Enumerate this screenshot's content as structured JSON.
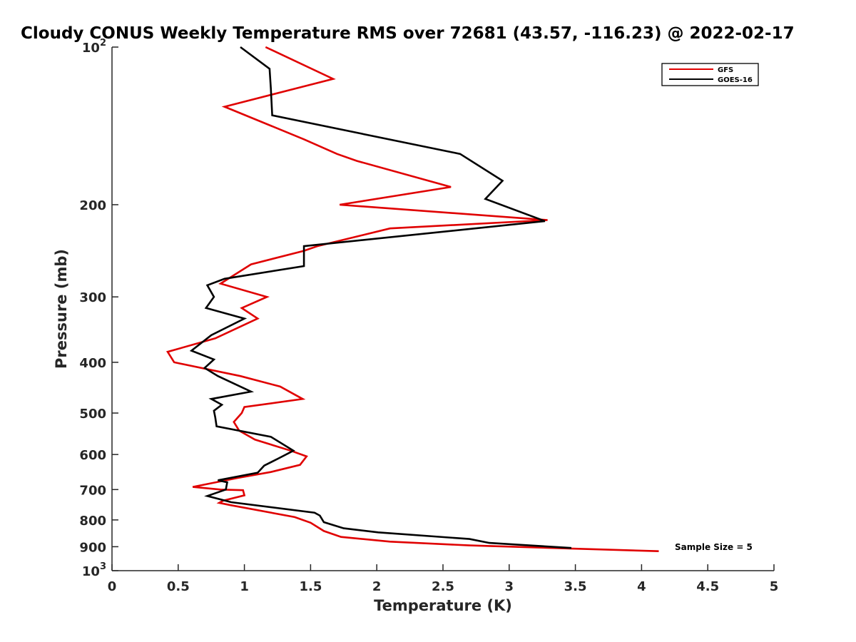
{
  "chart_data": {
    "type": "line",
    "title": "Cloudy CONUS Weekly Temperature RMS over 72681 (43.57, -116.23) @ 2022-02-17",
    "xlabel": "Temperature (K)",
    "ylabel": "Pressure (mb)",
    "xlim": [
      0,
      5
    ],
    "ylim": [
      100,
      1000
    ],
    "y_scale": "log",
    "y_reversed": true,
    "x_ticks": [
      0,
      0.5,
      1,
      1.5,
      2,
      2.5,
      3,
      3.5,
      4,
      4.5,
      5
    ],
    "x_tick_labels": [
      "0",
      "0.5",
      "1",
      "1.5",
      "2",
      "2.5",
      "3",
      "3.5",
      "4",
      "4.5",
      "5"
    ],
    "y_ticks": [
      100,
      200,
      300,
      400,
      500,
      600,
      700,
      800,
      900,
      1000
    ],
    "y_tick_labels": [
      {
        "base": "10",
        "exp": "2"
      },
      {
        "base": "200",
        "exp": ""
      },
      {
        "base": "300",
        "exp": ""
      },
      {
        "base": "400",
        "exp": ""
      },
      {
        "base": "500",
        "exp": ""
      },
      {
        "base": "600",
        "exp": ""
      },
      {
        "base": "700",
        "exp": ""
      },
      {
        "base": "800",
        "exp": ""
      },
      {
        "base": "900",
        "exp": ""
      },
      {
        "base": "10",
        "exp": "3"
      }
    ],
    "grid": false,
    "legend_position": "top-right",
    "series": [
      {
        "name": "GFS",
        "color": "#e00000",
        "points": [
          [
            1.16,
            100
          ],
          [
            1.67,
            115
          ],
          [
            0.85,
            130
          ],
          [
            1.45,
            150
          ],
          [
            1.7,
            160
          ],
          [
            1.85,
            165
          ],
          [
            2.56,
            185
          ],
          [
            1.72,
            200
          ],
          [
            3.29,
            214
          ],
          [
            2.1,
            222
          ],
          [
            1.55,
            240
          ],
          [
            1.45,
            245
          ],
          [
            1.05,
            260
          ],
          [
            0.82,
            283
          ],
          [
            1.17,
            300
          ],
          [
            0.98,
            315
          ],
          [
            1.1,
            330
          ],
          [
            0.78,
            360
          ],
          [
            0.42,
            382
          ],
          [
            0.47,
            400
          ],
          [
            0.97,
            425
          ],
          [
            1.27,
            445
          ],
          [
            1.44,
            470
          ],
          [
            1.0,
            487
          ],
          [
            0.98,
            500
          ],
          [
            0.92,
            520
          ],
          [
            0.96,
            540
          ],
          [
            1.08,
            562
          ],
          [
            1.35,
            590
          ],
          [
            1.47,
            605
          ],
          [
            1.42,
            628
          ],
          [
            1.2,
            648
          ],
          [
            0.95,
            665
          ],
          [
            0.61,
            692
          ],
          [
            0.82,
            700
          ],
          [
            0.99,
            702
          ],
          [
            1.0,
            718
          ],
          [
            0.84,
            735
          ],
          [
            0.81,
            742
          ],
          [
            0.9,
            750
          ],
          [
            1.38,
            790
          ],
          [
            1.5,
            810
          ],
          [
            1.6,
            840
          ],
          [
            1.73,
            862
          ],
          [
            2.1,
            880
          ],
          [
            2.7,
            895
          ],
          [
            3.5,
            908
          ],
          [
            4.13,
            918
          ]
        ]
      },
      {
        "name": "GOES-16",
        "color": "#000000",
        "points": [
          [
            0.97,
            100
          ],
          [
            1.19,
            110
          ],
          [
            1.2,
            120
          ],
          [
            1.21,
            135
          ],
          [
            2.63,
            160
          ],
          [
            2.95,
            180
          ],
          [
            2.82,
            195
          ],
          [
            3.27,
            215
          ],
          [
            1.45,
            240
          ],
          [
            1.45,
            262
          ],
          [
            0.85,
            277
          ],
          [
            0.72,
            285
          ],
          [
            0.77,
            300
          ],
          [
            0.71,
            315
          ],
          [
            1.0,
            330
          ],
          [
            0.75,
            355
          ],
          [
            0.6,
            380
          ],
          [
            0.77,
            395
          ],
          [
            0.7,
            410
          ],
          [
            0.8,
            425
          ],
          [
            1.05,
            455
          ],
          [
            0.75,
            470
          ],
          [
            0.83,
            482
          ],
          [
            0.77,
            495
          ],
          [
            0.78,
            510
          ],
          [
            0.79,
            530
          ],
          [
            1.2,
            555
          ],
          [
            1.37,
            590
          ],
          [
            1.26,
            610
          ],
          [
            1.15,
            630
          ],
          [
            1.1,
            650
          ],
          [
            0.8,
            672
          ],
          [
            0.87,
            678
          ],
          [
            0.86,
            700
          ],
          [
            0.72,
            720
          ],
          [
            0.9,
            740
          ],
          [
            1.53,
            775
          ],
          [
            1.57,
            785
          ],
          [
            1.6,
            808
          ],
          [
            1.75,
            830
          ],
          [
            2.01,
            845
          ],
          [
            2.7,
            870
          ],
          [
            2.85,
            885
          ],
          [
            3.47,
            905
          ]
        ]
      }
    ],
    "annotations": [
      "Sample Size = 5"
    ]
  }
}
